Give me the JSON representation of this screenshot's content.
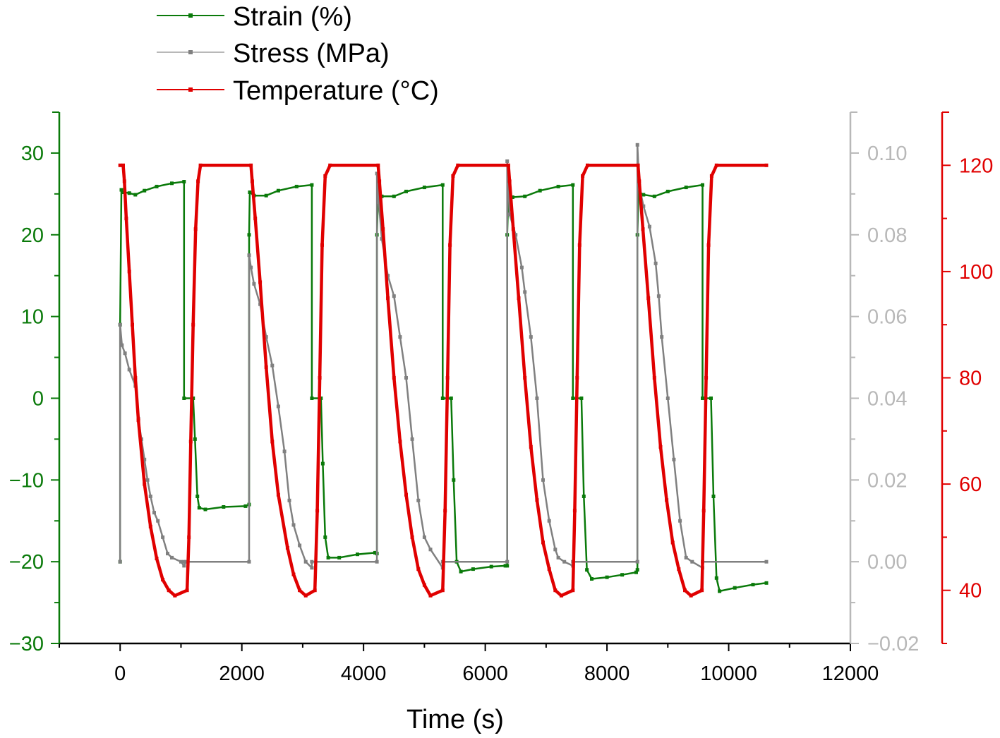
{
  "chart_data": {
    "type": "line",
    "xlabel": "Time (s)",
    "xlim": [
      -1000,
      12000
    ],
    "x_ticks": [
      0,
      2000,
      4000,
      6000,
      8000,
      10000,
      12000
    ],
    "grid": false,
    "legend_position": "top-left (above plot)",
    "axes": {
      "left": {
        "color": "#0a7a0a",
        "range": [
          -30,
          35
        ],
        "ticks": [
          -30,
          -20,
          -10,
          0,
          10,
          20,
          30
        ],
        "tick_labels": [
          "−30",
          "−20",
          "−10",
          "0",
          "10",
          "20",
          "30"
        ],
        "label": ""
      },
      "right1": {
        "color": "#b8b8b8",
        "range": [
          -0.02,
          0.11
        ],
        "ticks": [
          -0.02,
          0.0,
          0.02,
          0.04,
          0.06,
          0.08,
          0.1
        ],
        "tick_labels": [
          "−0.02",
          "0.00",
          "0.02",
          "0.04",
          "0.06",
          "0.08",
          "0.10"
        ],
        "label": ""
      },
      "right2": {
        "color": "#e00000",
        "range": [
          30,
          130
        ],
        "ticks": [
          40,
          60,
          80,
          100,
          120
        ],
        "tick_labels": [
          "40",
          "60",
          "80",
          "100",
          "120"
        ],
        "label": ""
      }
    },
    "series": [
      {
        "name": "Strain (%)",
        "axis": "left",
        "color": "#0a7a0a",
        "marker_color": "#0a7a0a",
        "points": [
          [
            0,
            -20
          ],
          [
            0,
            9
          ],
          [
            20,
            25.5
          ],
          [
            60,
            25.2
          ],
          [
            150,
            25.1
          ],
          [
            250,
            24.9
          ],
          [
            400,
            25.4
          ],
          [
            600,
            25.9
          ],
          [
            850,
            26.3
          ],
          [
            1050,
            26.5
          ],
          [
            1050,
            0
          ],
          [
            1200,
            0
          ],
          [
            1230,
            -5
          ],
          [
            1270,
            -12
          ],
          [
            1300,
            -13.4
          ],
          [
            1400,
            -13.6
          ],
          [
            1700,
            -13.3
          ],
          [
            2060,
            -13.2
          ],
          [
            2120,
            -13
          ],
          [
            2120,
            20
          ],
          [
            2130,
            25.2
          ],
          [
            2200,
            24.8
          ],
          [
            2400,
            24.8
          ],
          [
            2600,
            25.4
          ],
          [
            2900,
            25.9
          ],
          [
            3150,
            26.1
          ],
          [
            3150,
            0
          ],
          [
            3300,
            0
          ],
          [
            3330,
            -8
          ],
          [
            3370,
            -17
          ],
          [
            3420,
            -19.5
          ],
          [
            3600,
            -19.5
          ],
          [
            3900,
            -19.1
          ],
          [
            4190,
            -18.9
          ],
          [
            4220,
            -19
          ],
          [
            4220,
            20
          ],
          [
            4240,
            25
          ],
          [
            4300,
            24.7
          ],
          [
            4500,
            24.7
          ],
          [
            4700,
            25.3
          ],
          [
            5000,
            25.8
          ],
          [
            5300,
            26.1
          ],
          [
            5300,
            0
          ],
          [
            5440,
            0
          ],
          [
            5480,
            -10
          ],
          [
            5530,
            -20
          ],
          [
            5600,
            -21.2
          ],
          [
            5800,
            -20.9
          ],
          [
            6100,
            -20.6
          ],
          [
            6330,
            -20.5
          ],
          [
            6360,
            -20.5
          ],
          [
            6360,
            20
          ],
          [
            6380,
            25
          ],
          [
            6450,
            24.6
          ],
          [
            6650,
            24.7
          ],
          [
            6900,
            25.4
          ],
          [
            7200,
            25.9
          ],
          [
            7440,
            26.1
          ],
          [
            7440,
            0
          ],
          [
            7580,
            0
          ],
          [
            7620,
            -12
          ],
          [
            7670,
            -21
          ],
          [
            7750,
            -22.1
          ],
          [
            8000,
            -21.9
          ],
          [
            8250,
            -21.6
          ],
          [
            8480,
            -21.3
          ],
          [
            8500,
            -21
          ],
          [
            8500,
            20
          ],
          [
            8520,
            25.3
          ],
          [
            8600,
            24.9
          ],
          [
            8780,
            24.7
          ],
          [
            9000,
            25.3
          ],
          [
            9300,
            25.8
          ],
          [
            9570,
            26.1
          ],
          [
            9570,
            0
          ],
          [
            9710,
            0
          ],
          [
            9750,
            -12
          ],
          [
            9800,
            -22
          ],
          [
            9850,
            -23.6
          ],
          [
            10100,
            -23.2
          ],
          [
            10400,
            -22.8
          ],
          [
            10620,
            -22.6
          ]
        ]
      },
      {
        "name": "Stress (MPa)",
        "axis": "right1",
        "color": "#808080",
        "marker_color": "#808080",
        "points": [
          [
            0,
            0
          ],
          [
            0,
            0.058
          ],
          [
            30,
            0.053
          ],
          [
            80,
            0.051
          ],
          [
            150,
            0.047
          ],
          [
            250,
            0.043
          ],
          [
            300,
            0.035
          ],
          [
            350,
            0.03
          ],
          [
            400,
            0.025
          ],
          [
            450,
            0.02
          ],
          [
            500,
            0.016
          ],
          [
            560,
            0.012
          ],
          [
            620,
            0.01
          ],
          [
            700,
            0.006
          ],
          [
            780,
            0.002
          ],
          [
            850,
            0.001
          ],
          [
            1000,
            0
          ],
          [
            1050,
            -0.001
          ],
          [
            1080,
            0
          ],
          [
            1050,
            0
          ],
          [
            2120,
            0
          ],
          [
            2120,
            0.075
          ],
          [
            2150,
            0.072
          ],
          [
            2200,
            0.068
          ],
          [
            2300,
            0.063
          ],
          [
            2400,
            0.055
          ],
          [
            2500,
            0.048
          ],
          [
            2600,
            0.038
          ],
          [
            2700,
            0.027
          ],
          [
            2780,
            0.015
          ],
          [
            2850,
            0.009
          ],
          [
            2950,
            0.004
          ],
          [
            3050,
            0.0
          ],
          [
            3150,
            -0.0015
          ],
          [
            3150,
            0
          ],
          [
            4220,
            0
          ],
          [
            4220,
            0.095
          ],
          [
            4250,
            0.088
          ],
          [
            4300,
            0.079
          ],
          [
            4400,
            0.07
          ],
          [
            4500,
            0.065
          ],
          [
            4600,
            0.055
          ],
          [
            4700,
            0.045
          ],
          [
            4800,
            0.03
          ],
          [
            4900,
            0.015
          ],
          [
            5000,
            0.006
          ],
          [
            5100,
            0.003
          ],
          [
            5300,
            -0.0015
          ],
          [
            5300,
            0
          ],
          [
            6360,
            0
          ],
          [
            6360,
            0.098
          ],
          [
            6400,
            0.085
          ],
          [
            6500,
            0.08
          ],
          [
            6600,
            0.072
          ],
          [
            6650,
            0.066
          ],
          [
            6750,
            0.055
          ],
          [
            6850,
            0.04
          ],
          [
            6950,
            0.02
          ],
          [
            7050,
            0.01
          ],
          [
            7150,
            0.003
          ],
          [
            7200,
            0.001
          ],
          [
            7300,
            0.0
          ],
          [
            7440,
            -0.001
          ],
          [
            7440,
            0
          ],
          [
            8500,
            0
          ],
          [
            8500,
            0.102
          ],
          [
            8530,
            0.092
          ],
          [
            8600,
            0.087
          ],
          [
            8700,
            0.082
          ],
          [
            8800,
            0.073
          ],
          [
            8850,
            0.065
          ],
          [
            8900,
            0.055
          ],
          [
            9000,
            0.04
          ],
          [
            9100,
            0.025
          ],
          [
            9200,
            0.01
          ],
          [
            9300,
            0.001
          ],
          [
            9400,
            0.0
          ],
          [
            9570,
            -0.0015
          ],
          [
            9570,
            0
          ],
          [
            10620,
            0
          ]
        ]
      },
      {
        "name": "Temperature (°C)",
        "axis": "right2",
        "color": "#e00000",
        "marker_color": "#e00000",
        "points": [
          [
            0,
            120
          ],
          [
            50,
            120
          ],
          [
            70,
            117
          ],
          [
            100,
            110
          ],
          [
            150,
            100
          ],
          [
            200,
            90
          ],
          [
            250,
            80
          ],
          [
            300,
            72
          ],
          [
            400,
            60
          ],
          [
            500,
            52
          ],
          [
            600,
            46
          ],
          [
            700,
            42
          ],
          [
            800,
            40
          ],
          [
            900,
            39
          ],
          [
            1100,
            40
          ],
          [
            1130,
            50
          ],
          [
            1160,
            68
          ],
          [
            1200,
            90
          ],
          [
            1240,
            108
          ],
          [
            1280,
            117
          ],
          [
            1320,
            120
          ],
          [
            2150,
            120
          ],
          [
            2170,
            117
          ],
          [
            2220,
            110
          ],
          [
            2300,
            98
          ],
          [
            2400,
            82
          ],
          [
            2500,
            68
          ],
          [
            2600,
            58
          ],
          [
            2750,
            48
          ],
          [
            2850,
            43
          ],
          [
            2950,
            40
          ],
          [
            3050,
            39
          ],
          [
            3200,
            40
          ],
          [
            3240,
            55
          ],
          [
            3280,
            80
          ],
          [
            3320,
            105
          ],
          [
            3370,
            118
          ],
          [
            3450,
            120
          ],
          [
            4240,
            120
          ],
          [
            4260,
            117
          ],
          [
            4320,
            108
          ],
          [
            4400,
            95
          ],
          [
            4500,
            80
          ],
          [
            4600,
            68
          ],
          [
            4700,
            58
          ],
          [
            4800,
            50
          ],
          [
            4900,
            44
          ],
          [
            5000,
            41
          ],
          [
            5100,
            39
          ],
          [
            5300,
            40
          ],
          [
            5340,
            55
          ],
          [
            5380,
            80
          ],
          [
            5420,
            105
          ],
          [
            5470,
            118
          ],
          [
            5550,
            120
          ],
          [
            6380,
            120
          ],
          [
            6400,
            117
          ],
          [
            6460,
            108
          ],
          [
            6550,
            95
          ],
          [
            6650,
            80
          ],
          [
            6750,
            67
          ],
          [
            6850,
            57
          ],
          [
            6950,
            49
          ],
          [
            7050,
            44
          ],
          [
            7150,
            40
          ],
          [
            7250,
            39
          ],
          [
            7440,
            40
          ],
          [
            7470,
            55
          ],
          [
            7510,
            80
          ],
          [
            7550,
            105
          ],
          [
            7600,
            118
          ],
          [
            7680,
            120
          ],
          [
            8510,
            120
          ],
          [
            8530,
            117
          ],
          [
            8590,
            108
          ],
          [
            8680,
            95
          ],
          [
            8780,
            80
          ],
          [
            8880,
            67
          ],
          [
            8980,
            57
          ],
          [
            9080,
            49
          ],
          [
            9180,
            44
          ],
          [
            9280,
            40
          ],
          [
            9380,
            39
          ],
          [
            9560,
            40
          ],
          [
            9590,
            55
          ],
          [
            9630,
            80
          ],
          [
            9670,
            105
          ],
          [
            9720,
            118
          ],
          [
            9800,
            120
          ],
          [
            10620,
            120
          ]
        ]
      }
    ]
  }
}
